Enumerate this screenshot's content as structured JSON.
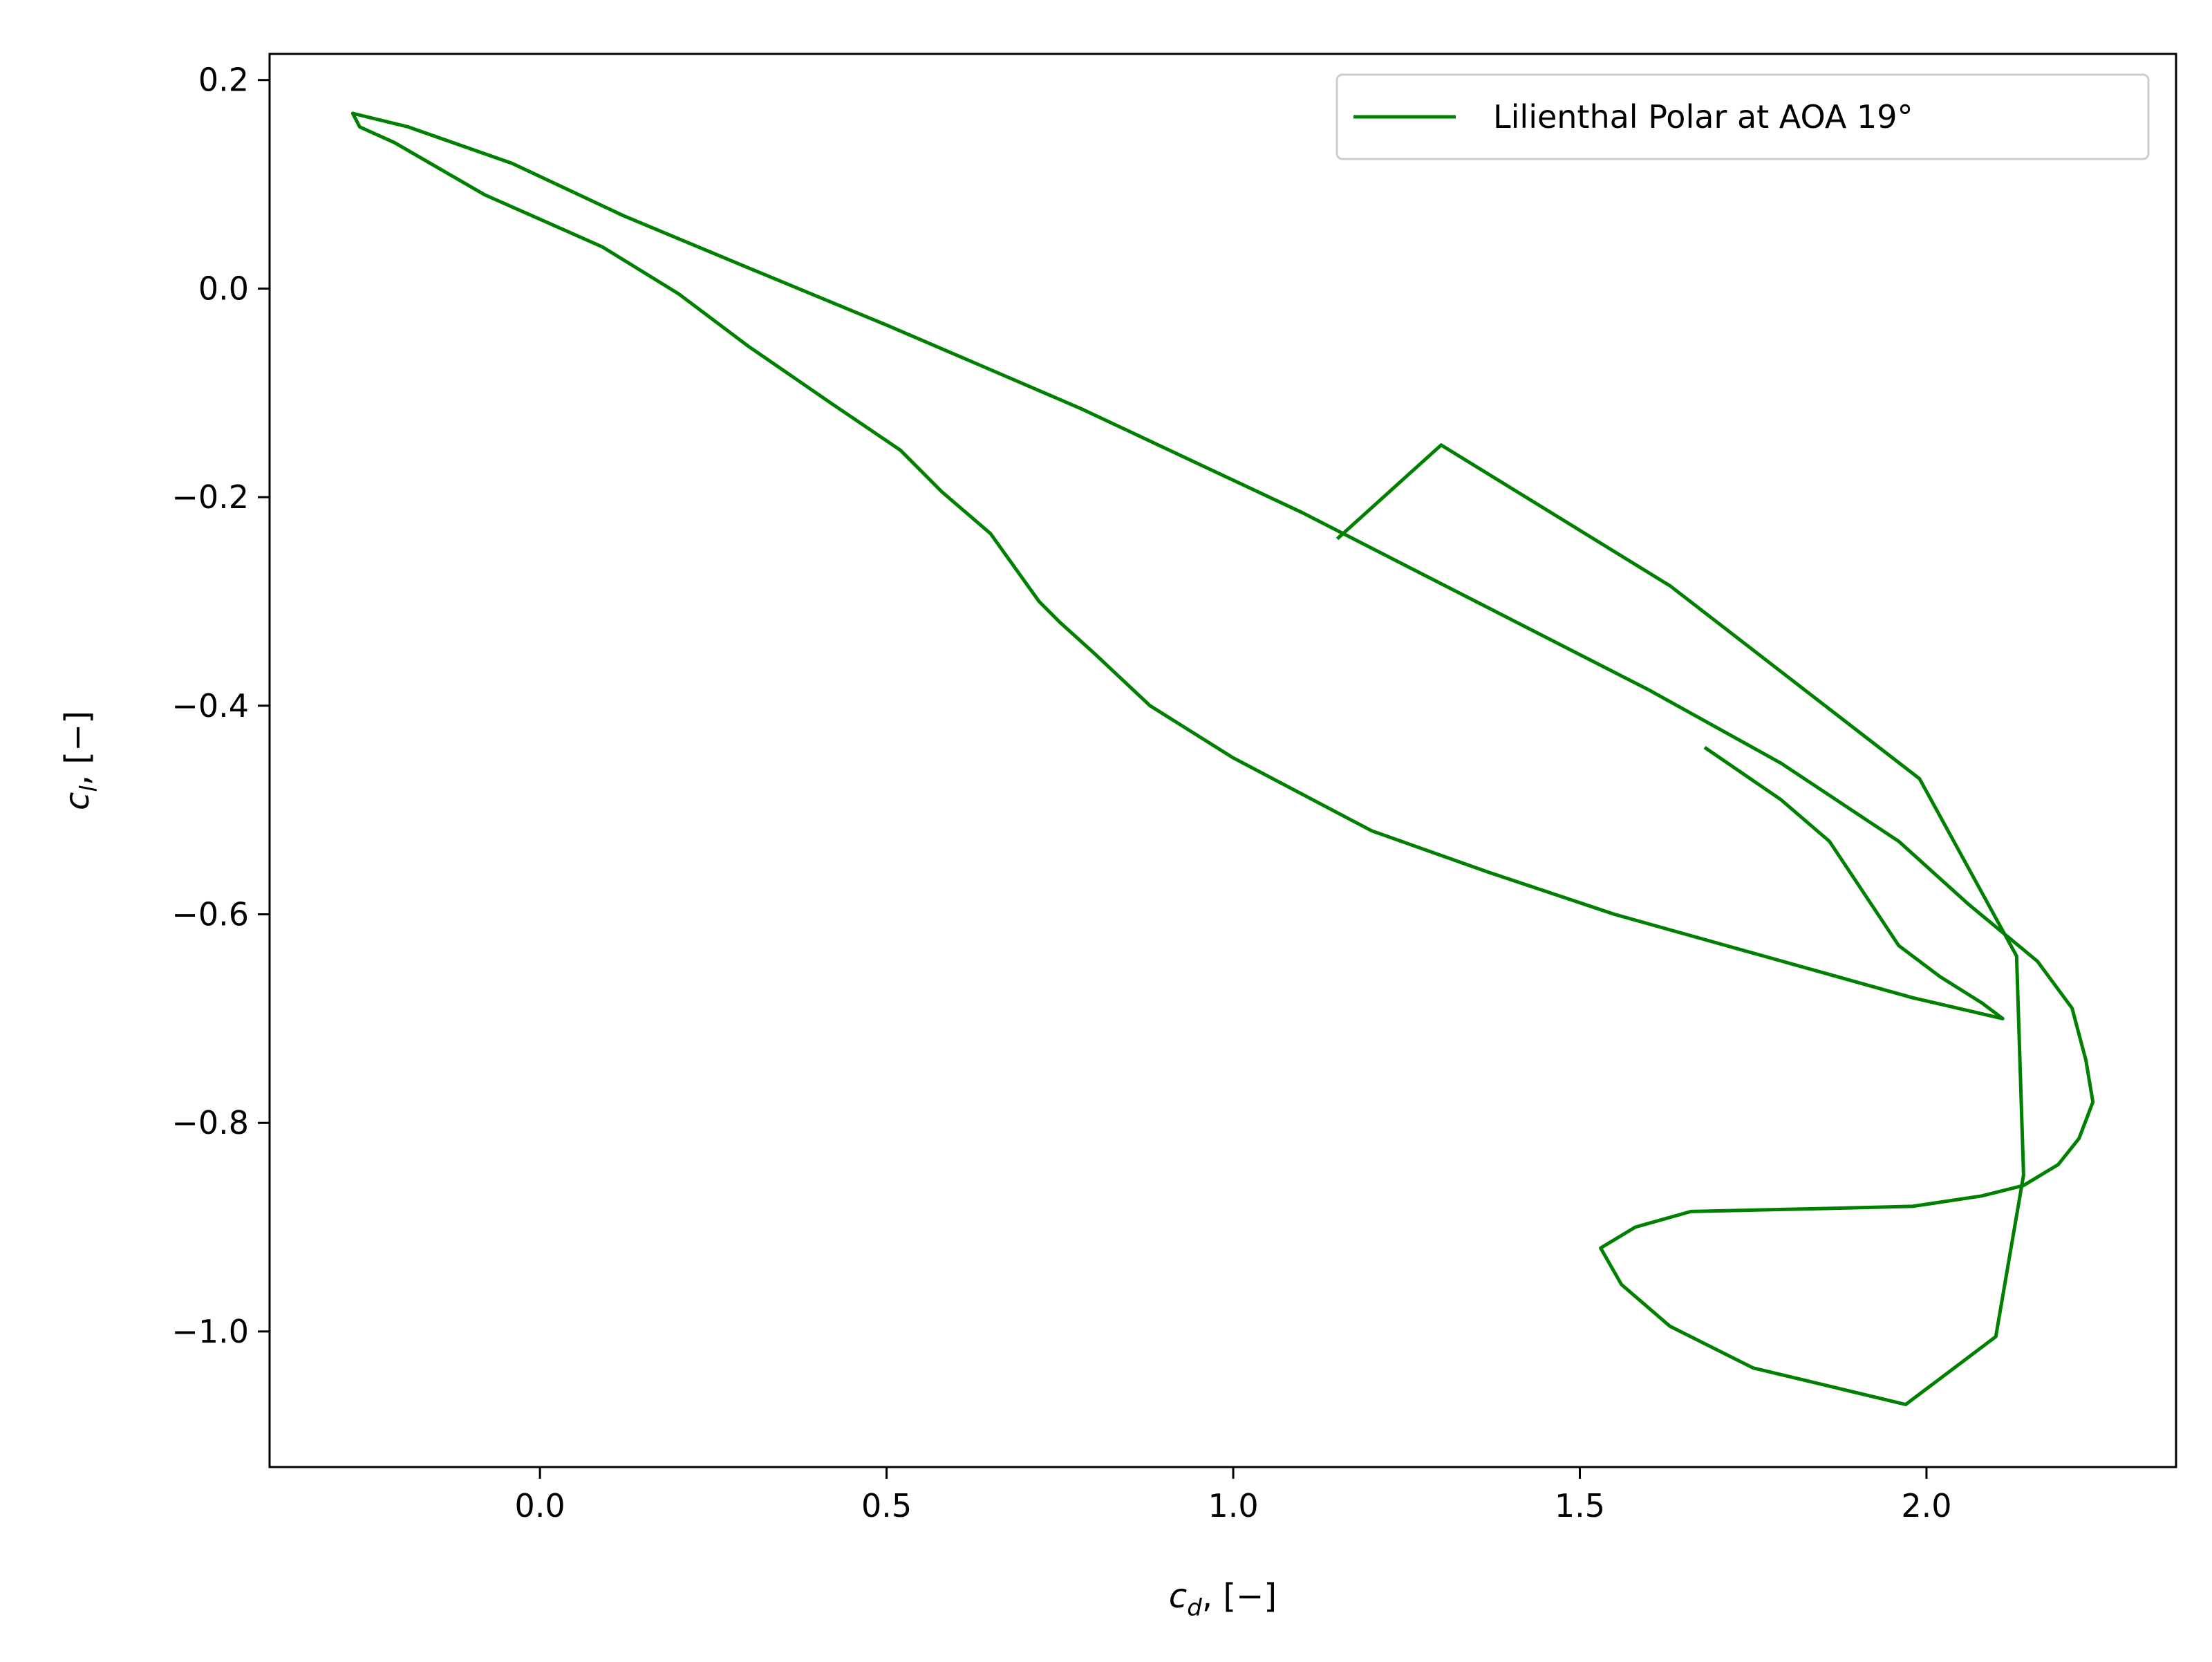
{
  "chart_data": {
    "type": "line",
    "title": "",
    "xlabel": "c_d, [−]",
    "ylabel": "c_l, [−]",
    "xlabel_parts": {
      "var": "c",
      "sub": "d",
      "unit": ", [−]"
    },
    "ylabel_parts": {
      "var": "c",
      "sub": "l",
      "unit": ", [−]"
    },
    "xlim": [
      -0.39,
      2.36
    ],
    "ylim": [
      -1.13,
      0.225
    ],
    "xticks": [
      0.0,
      0.5,
      1.0,
      1.5,
      2.0
    ],
    "xtick_labels": [
      "0.0",
      "0.5",
      "1.0",
      "1.5",
      "2.0"
    ],
    "yticks": [
      0.2,
      0.0,
      -0.2,
      -0.4,
      -0.6,
      -0.8,
      -1.0
    ],
    "ytick_labels": [
      "0.2",
      "0.0",
      "−0.2",
      "−0.4",
      "−0.6",
      "−0.8",
      "−1.0"
    ],
    "grid": false,
    "legend": {
      "position": "top-right",
      "entries": [
        "Lilienthal Polar at AOA 19°"
      ]
    },
    "series": [
      {
        "name": "Lilienthal Polar at AOA 19°",
        "color": "#008000",
        "x": [
          1.68,
          1.79,
          1.86,
          1.9,
          1.96,
          2.02,
          2.08,
          2.1,
          2.11,
          1.98,
          1.55,
          1.37,
          1.2,
          1.0,
          0.88,
          0.8,
          0.75,
          0.72,
          0.65,
          0.58,
          0.52,
          0.42,
          0.3,
          0.2,
          0.09,
          -0.08,
          -0.21,
          -0.26,
          -0.27,
          -0.19,
          -0.04,
          0.12,
          0.3,
          0.5,
          0.64,
          0.78,
          1.1,
          1.35,
          1.6,
          1.79,
          1.96,
          2.06,
          2.16,
          2.21,
          2.23,
          2.24,
          2.22,
          2.19,
          2.14,
          2.08,
          1.98,
          1.86,
          1.66,
          1.58,
          1.53,
          1.56,
          1.63,
          1.75,
          1.97,
          2.1,
          2.14,
          2.13,
          1.99,
          1.63,
          1.3,
          1.15
        ],
        "y": [
          -0.44,
          -0.49,
          -0.53,
          -0.57,
          -0.63,
          -0.66,
          -0.685,
          -0.695,
          -0.7,
          -0.68,
          -0.6,
          -0.56,
          -0.52,
          -0.45,
          -0.4,
          -0.35,
          -0.32,
          -0.3,
          -0.235,
          -0.195,
          -0.155,
          -0.11,
          -0.055,
          -0.005,
          0.04,
          0.09,
          0.14,
          0.155,
          0.168,
          0.155,
          0.12,
          0.07,
          0.02,
          -0.035,
          -0.075,
          -0.115,
          -0.215,
          -0.3,
          -0.385,
          -0.455,
          -0.53,
          -0.59,
          -0.645,
          -0.69,
          -0.74,
          -0.78,
          -0.815,
          -0.84,
          -0.86,
          -0.87,
          -0.88,
          -0.882,
          -0.885,
          -0.9,
          -0.92,
          -0.955,
          -0.995,
          -1.035,
          -1.07,
          -1.005,
          -0.85,
          -0.64,
          -0.47,
          -0.285,
          -0.15,
          -0.24
        ]
      }
    ]
  }
}
